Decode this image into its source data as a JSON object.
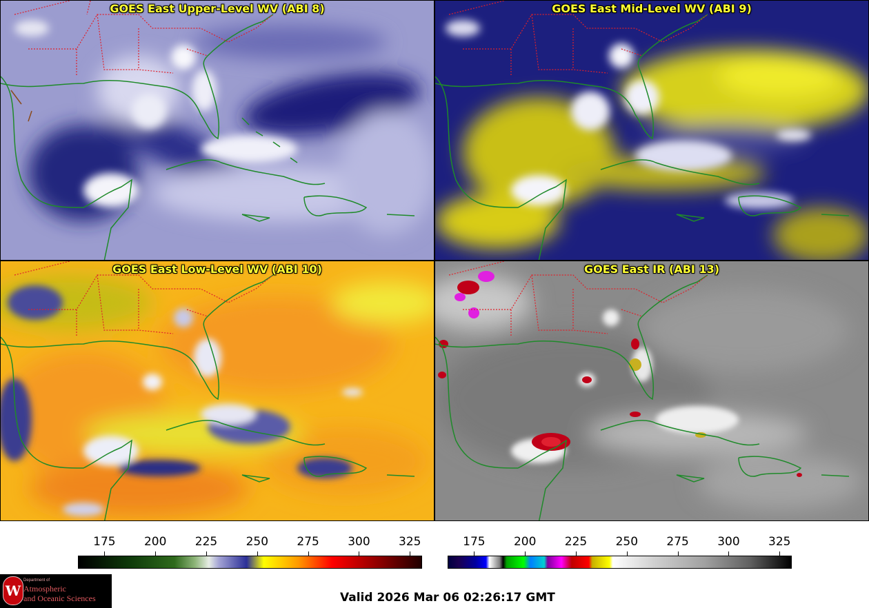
{
  "panels": [
    {
      "id": "p1",
      "title": "GOES East Upper-Level WV (ABI 8)"
    },
    {
      "id": "p2",
      "title": "GOES East Mid-Level WV (ABI 9)"
    },
    {
      "id": "p3",
      "title": "GOES East Low-Level WV (ABI 10)"
    },
    {
      "id": "p4",
      "title": "GOES East IR (ABI 13)"
    }
  ],
  "colorbar_wv": {
    "ticks": [
      "175",
      "200",
      "225",
      "250",
      "275",
      "300",
      "325"
    ],
    "range": [
      162,
      331
    ]
  },
  "colorbar_ir": {
    "ticks": [
      "175",
      "200",
      "225",
      "250",
      "275",
      "300",
      "325"
    ],
    "range": [
      162,
      331
    ]
  },
  "logo": {
    "seal_letter": "W",
    "line1": "Department of",
    "line2": "Atmospheric",
    "line3": "and Oceanic Sciences"
  },
  "valid_time": "Valid 2026 Mar 06 02:26:17 GMT",
  "colors": {
    "title_text": "#ffff33",
    "state_borders": "#e0202a",
    "coastline": "#1f8a2a"
  }
}
